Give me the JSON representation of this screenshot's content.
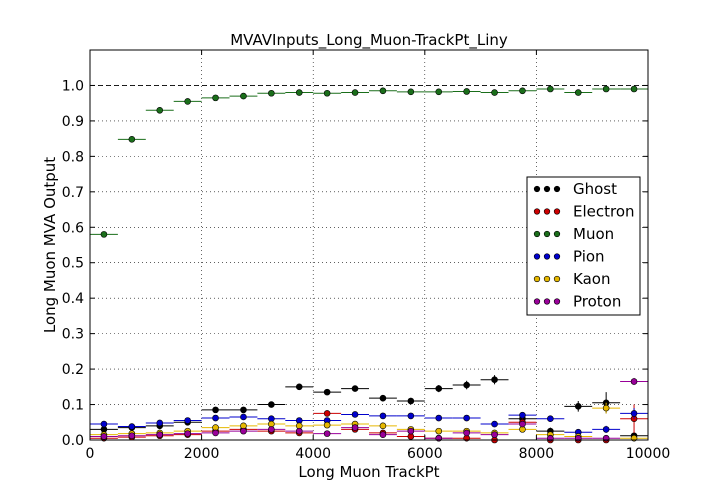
{
  "chart_data": {
    "type": "scatter",
    "title": "MVAVInputs_Long_Muon-TrackPt_Liny",
    "xlabel": "Long Muon TrackPt",
    "ylabel": "Long Muon MVA Output",
    "xlim": [
      0,
      10000
    ],
    "ylim": [
      0,
      1.1
    ],
    "xticks": [
      0,
      2000,
      4000,
      6000,
      8000,
      10000
    ],
    "yticks": [
      0.0,
      0.1,
      0.2,
      0.3,
      0.4,
      0.5,
      0.6,
      0.7,
      0.8,
      0.9,
      1.0
    ],
    "ytick_labels": [
      "0.0",
      "0.1",
      "0.2",
      "0.3",
      "0.4",
      "0.5",
      "0.6",
      "0.7",
      "0.8",
      "0.9",
      "1.0"
    ],
    "grid": true,
    "reference_line_y": 1.0,
    "legend_position": "right",
    "bin_width": 500,
    "x": [
      250,
      750,
      1250,
      1750,
      2250,
      2750,
      3250,
      3750,
      4250,
      4750,
      5250,
      5750,
      6250,
      6750,
      7250,
      7750,
      8250,
      8750,
      9250,
      9750
    ],
    "series": [
      {
        "name": "Ghost",
        "color": "#000000",
        "values": [
          0.03,
          0.035,
          0.04,
          0.05,
          0.085,
          0.085,
          0.1,
          0.15,
          0.135,
          0.145,
          0.118,
          0.11,
          0.145,
          0.155,
          0.17,
          0.06,
          0.025,
          0.095,
          0.105,
          0.012
        ],
        "errors": [
          0.003,
          0.003,
          0.004,
          0.004,
          0.005,
          0.006,
          0.006,
          0.007,
          0.007,
          0.008,
          0.009,
          0.009,
          0.01,
          0.012,
          0.013,
          0.012,
          0.01,
          0.015,
          0.03,
          0.01
        ]
      },
      {
        "name": "Electron",
        "color": "#cc0000",
        "values": [
          0.005,
          0.008,
          0.012,
          0.015,
          0.025,
          0.03,
          0.025,
          0.02,
          0.075,
          0.03,
          0.02,
          0.01,
          0.005,
          0.005,
          0.0,
          0.05,
          0.0,
          0.0,
          0.0,
          0.06
        ],
        "errors": [
          0.002,
          0.002,
          0.003,
          0.003,
          0.004,
          0.005,
          0.005,
          0.005,
          0.008,
          0.006,
          0.006,
          0.005,
          0.004,
          0.004,
          0.0,
          0.01,
          0.0,
          0.0,
          0.0,
          0.04
        ]
      },
      {
        "name": "Muon",
        "color": "#1a6e1a",
        "values": [
          0.58,
          0.848,
          0.93,
          0.955,
          0.965,
          0.97,
          0.978,
          0.98,
          0.978,
          0.98,
          0.985,
          0.982,
          0.982,
          0.983,
          0.98,
          0.985,
          0.99,
          0.98,
          0.99,
          0.99
        ],
        "errors": [
          0.004,
          0.003,
          0.003,
          0.003,
          0.002,
          0.002,
          0.002,
          0.002,
          0.002,
          0.002,
          0.002,
          0.002,
          0.002,
          0.002,
          0.003,
          0.003,
          0.003,
          0.003,
          0.003,
          0.003
        ]
      },
      {
        "name": "Pion",
        "color": "#0000cc",
        "values": [
          0.045,
          0.038,
          0.048,
          0.055,
          0.062,
          0.065,
          0.06,
          0.055,
          0.055,
          0.072,
          0.068,
          0.068,
          0.062,
          0.062,
          0.045,
          0.07,
          0.06,
          0.022,
          0.03,
          0.075
        ],
        "errors": [
          0.003,
          0.003,
          0.004,
          0.004,
          0.005,
          0.005,
          0.005,
          0.006,
          0.006,
          0.006,
          0.007,
          0.007,
          0.007,
          0.008,
          0.008,
          0.009,
          0.009,
          0.008,
          0.01,
          0.015
        ]
      },
      {
        "name": "Kaon",
        "color": "#e6b800",
        "values": [
          0.015,
          0.018,
          0.02,
          0.025,
          0.035,
          0.04,
          0.045,
          0.04,
          0.042,
          0.045,
          0.04,
          0.03,
          0.025,
          0.025,
          0.02,
          0.03,
          0.015,
          0.01,
          0.09,
          0.005
        ],
        "errors": [
          0.002,
          0.002,
          0.003,
          0.003,
          0.004,
          0.004,
          0.005,
          0.005,
          0.005,
          0.006,
          0.006,
          0.006,
          0.006,
          0.006,
          0.006,
          0.007,
          0.006,
          0.006,
          0.015,
          0.005
        ]
      },
      {
        "name": "Proton",
        "color": "#990099",
        "values": [
          0.01,
          0.012,
          0.015,
          0.018,
          0.02,
          0.025,
          0.03,
          0.025,
          0.018,
          0.035,
          0.015,
          0.025,
          0.005,
          0.02,
          0.015,
          0.045,
          0.005,
          0.005,
          0.005,
          0.165
        ],
        "errors": [
          0.002,
          0.002,
          0.002,
          0.003,
          0.003,
          0.004,
          0.004,
          0.004,
          0.004,
          0.005,
          0.005,
          0.005,
          0.004,
          0.005,
          0.005,
          0.006,
          0.004,
          0.004,
          0.004,
          0.01
        ]
      }
    ]
  }
}
